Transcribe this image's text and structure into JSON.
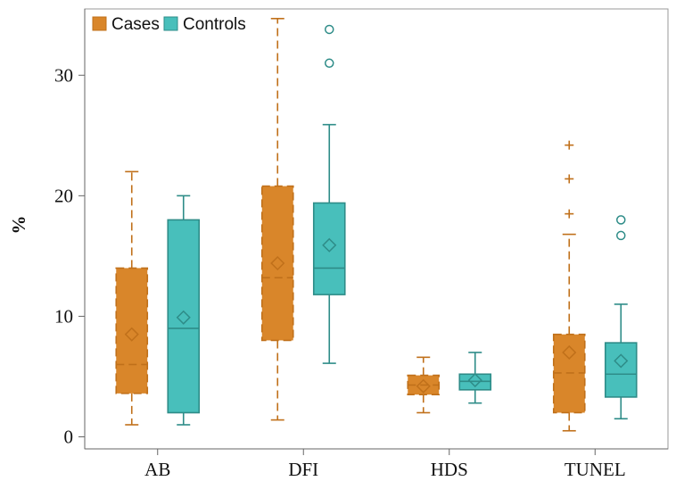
{
  "chart_data": {
    "type": "box",
    "title": "",
    "xlabel": "",
    "ylabel": "%",
    "ylim": [
      -1,
      35.5
    ],
    "yticks": [
      0,
      10,
      20,
      30
    ],
    "categories": [
      "AB",
      "DFI",
      "HDS",
      "TUNEL"
    ],
    "legend": {
      "position": "top-left"
    },
    "series": [
      {
        "name": "Cases",
        "color": "#D9862A",
        "edge_color": "#C0701A",
        "line_style": "dashed",
        "outlier_marker": "plus",
        "boxes": [
          {
            "category": "AB",
            "whisker_low": 1.0,
            "q1": 3.6,
            "median": 6.0,
            "q3": 14.0,
            "whisker_high": 22.0,
            "mean": 8.5,
            "outliers": []
          },
          {
            "category": "DFI",
            "whisker_low": 1.4,
            "q1": 8.0,
            "median": 13.2,
            "q3": 20.8,
            "whisker_high": 34.7,
            "mean": 14.4,
            "outliers": []
          },
          {
            "category": "HDS",
            "whisker_low": 2.0,
            "q1": 3.5,
            "median": 4.3,
            "q3": 5.1,
            "whisker_high": 6.6,
            "mean": 4.2,
            "outliers": []
          },
          {
            "category": "TUNEL",
            "whisker_low": 0.5,
            "q1": 2.0,
            "median": 5.3,
            "q3": 8.5,
            "whisker_high": 16.8,
            "mean": 7.0,
            "outliers": [
              18.5,
              21.4,
              24.2
            ]
          }
        ]
      },
      {
        "name": "Controls",
        "color": "#48BFBB",
        "edge_color": "#2E8C88",
        "line_style": "solid",
        "outlier_marker": "circle",
        "boxes": [
          {
            "category": "AB",
            "whisker_low": 1.0,
            "q1": 2.0,
            "median": 9.0,
            "q3": 18.0,
            "whisker_high": 20.0,
            "mean": 9.9,
            "outliers": []
          },
          {
            "category": "DFI",
            "whisker_low": 6.1,
            "q1": 11.8,
            "median": 14.0,
            "q3": 19.4,
            "whisker_high": 25.9,
            "mean": 15.9,
            "outliers": [
              31.0,
              33.8
            ]
          },
          {
            "category": "HDS",
            "whisker_low": 2.8,
            "q1": 3.9,
            "median": 4.6,
            "q3": 5.2,
            "whisker_high": 7.0,
            "mean": 4.7,
            "outliers": []
          },
          {
            "category": "TUNEL",
            "whisker_low": 1.5,
            "q1": 3.3,
            "median": 5.2,
            "q3": 7.8,
            "whisker_high": 11.0,
            "mean": 6.3,
            "outliers": [
              16.7,
              18.0
            ]
          }
        ]
      }
    ]
  }
}
